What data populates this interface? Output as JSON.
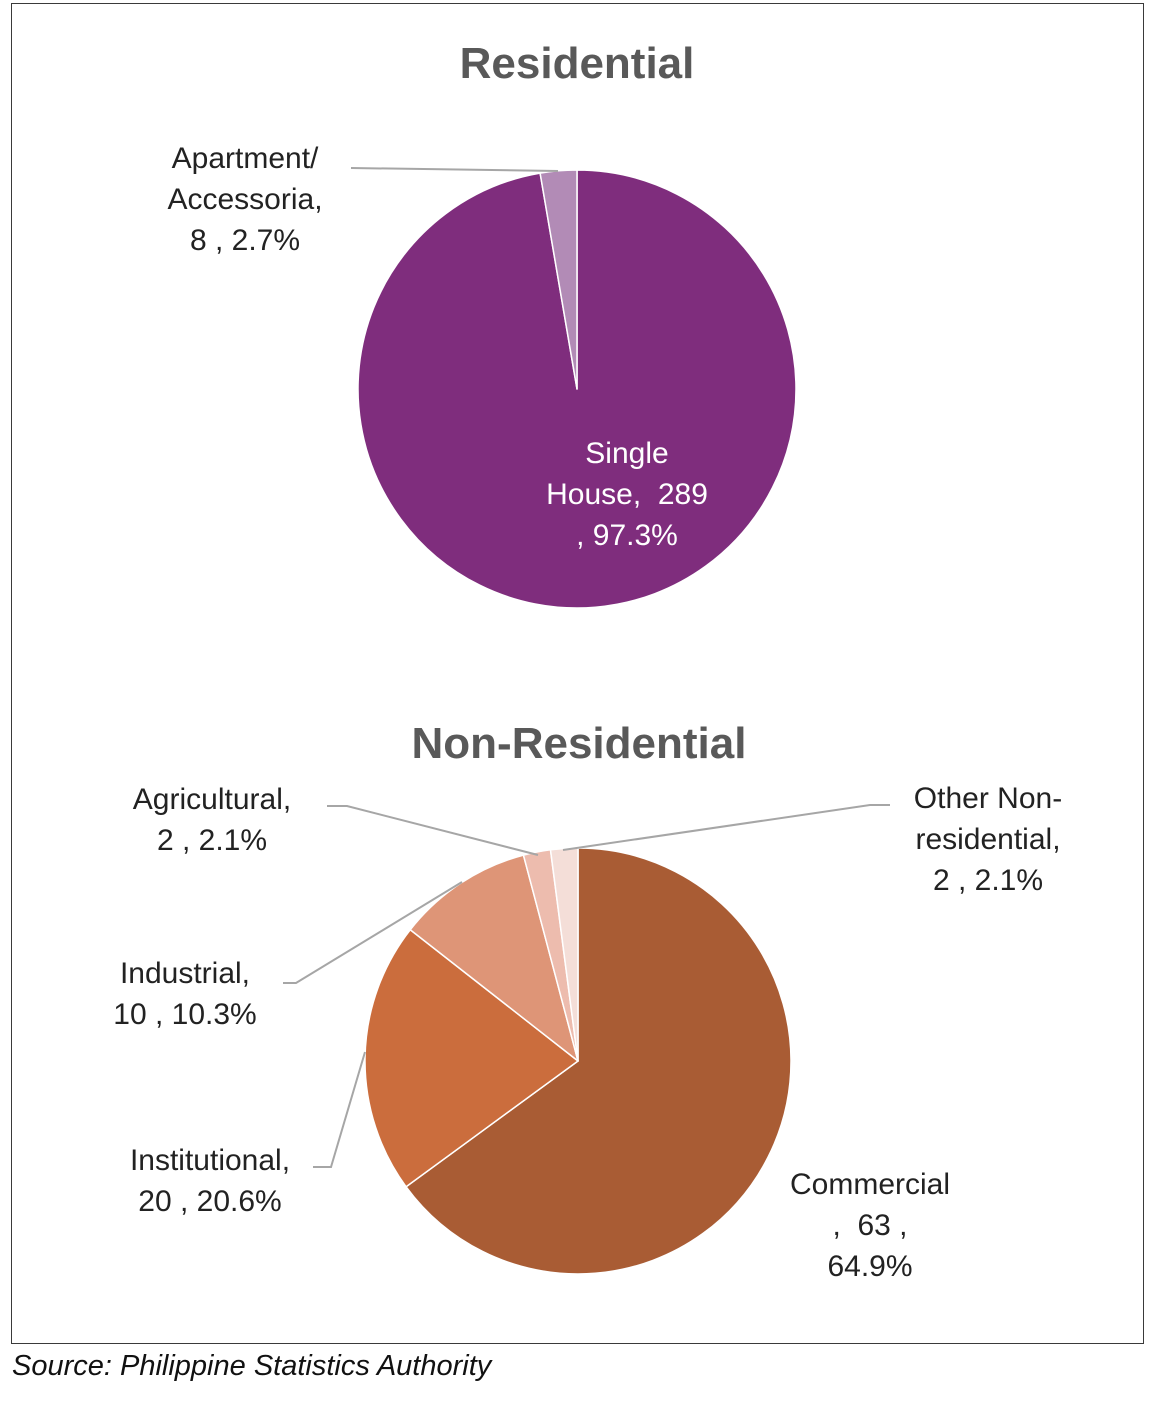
{
  "chart_data": [
    {
      "type": "pie",
      "title": "Residential",
      "slices": [
        {
          "label": "Single House",
          "value": 289,
          "percent": 97.3,
          "color": "#7f2d7d",
          "label_lines": [
            "Single",
            "House,  289",
            ", 97.3%"
          ]
        },
        {
          "label": "Apartment/ Accessoria",
          "value": 8,
          "percent": 2.7,
          "color": "#b28bb6",
          "label_lines": [
            "Apartment/",
            "Accessoria,",
            "8 , 2.7%"
          ]
        }
      ]
    },
    {
      "type": "pie",
      "title": "Non-Residential",
      "slices": [
        {
          "label": "Commercial",
          "value": 63,
          "percent": 64.9,
          "color": "#a95c34",
          "label_lines": [
            "Commercial",
            ",  63 ,",
            "64.9%"
          ]
        },
        {
          "label": "Institutional",
          "value": 20,
          "percent": 20.6,
          "color": "#cb6d3d",
          "label_lines": [
            "Institutional,",
            "20 , 20.6%"
          ]
        },
        {
          "label": "Industrial",
          "value": 10,
          "percent": 10.3,
          "color": "#de9577",
          "label_lines": [
            "Industrial,",
            "10 , 10.3%"
          ]
        },
        {
          "label": "Agricultural",
          "value": 2,
          "percent": 2.1,
          "color": "#edbcae",
          "label_lines": [
            "Agricultural,",
            "2 , 2.1%"
          ]
        },
        {
          "label": "Other Non-residential",
          "value": 2,
          "percent": 2.1,
          "color": "#f4ded8",
          "label_lines": [
            "Other Non-",
            "residential,",
            "2 , 2.1%"
          ]
        }
      ]
    }
  ],
  "source": "Source: Philippine Statistics Authority"
}
